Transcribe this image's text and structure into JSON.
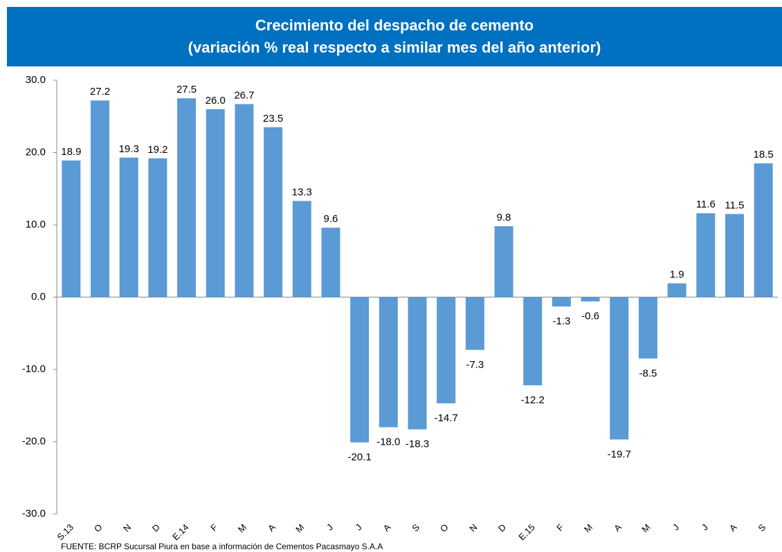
{
  "chart_data": {
    "type": "bar",
    "title": "Crecimiento del despacho de cemento",
    "subtitle": "(variación % real respecto a similar mes del año anterior)",
    "categories": [
      "S.13",
      "O",
      "N",
      "D",
      "E.14",
      "F",
      "M",
      "A",
      "M",
      "J",
      "J",
      "A",
      "S",
      "O",
      "N",
      "D",
      "E.15",
      "F",
      "M",
      "A",
      "M",
      "J",
      "J",
      "A",
      "S"
    ],
    "values": [
      18.9,
      27.2,
      19.3,
      19.2,
      27.5,
      26.0,
      26.7,
      23.5,
      13.3,
      9.6,
      -20.1,
      -18.0,
      -18.3,
      -14.7,
      -7.3,
      9.8,
      -12.2,
      -1.3,
      -0.6,
      -19.7,
      -8.5,
      1.9,
      11.6,
      11.5,
      18.5
    ],
    "value_labels": [
      "18.9",
      "27.2",
      "19.3",
      "19.2",
      "27.5",
      "26.0",
      "26.7",
      "23.5",
      "13.3",
      "9.6",
      "-20.1",
      "-18.0",
      "-18.3",
      "-14.7",
      "-7.3",
      "9.8",
      "-12.2",
      "-1.3",
      "-0.6",
      "-19.7",
      "-8.5",
      "1.9",
      "11.6",
      "11.5",
      "18.5"
    ],
    "color": "#5b9bd5",
    "ylim": [
      -30,
      30
    ],
    "yticks": [
      {
        "value": -30,
        "label": "-30.0"
      },
      {
        "value": -20,
        "label": "-20.0"
      },
      {
        "value": -10,
        "label": "-10.0"
      },
      {
        "value": 0,
        "label": "0.0"
      },
      {
        "value": 10,
        "label": "10.0"
      },
      {
        "value": 20,
        "label": "20.0"
      },
      {
        "value": 30,
        "label": "30.0"
      }
    ],
    "grid": false,
    "source": "FUENTE:   BCRP Sucursal Piura en base a información de Cementos Pacasmayo S.A.A"
  }
}
